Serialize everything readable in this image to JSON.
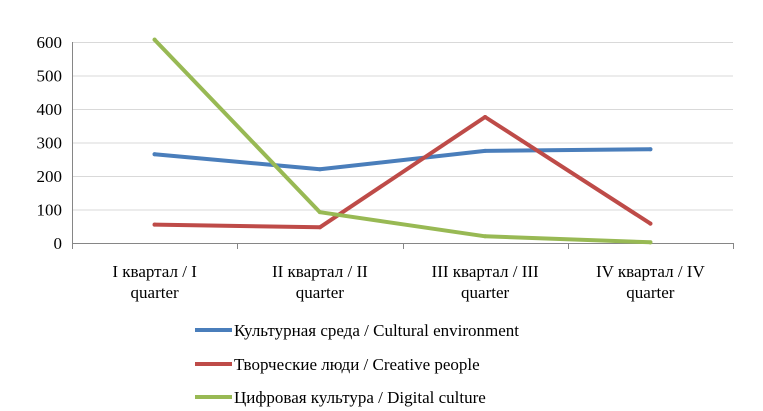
{
  "chart_data": {
    "type": "line",
    "categories": [
      [
        "I квартал / I",
        "quarter"
      ],
      [
        "II квартал / II",
        "quarter"
      ],
      [
        "III квартал / III",
        "quarter"
      ],
      [
        "IV квартал / IV",
        "quarter"
      ]
    ],
    "ylim": [
      0,
      600
    ],
    "yticks": [
      0,
      100,
      200,
      300,
      400,
      500,
      600
    ],
    "grid": true,
    "legend_position": "bottom",
    "series": [
      {
        "name": "Культурная среда / Cultural environment",
        "color": "#4a7ebb",
        "values": [
          265,
          220,
          275,
          280
        ]
      },
      {
        "name": "Творческие люди / Creative people",
        "color": "#be4b48",
        "values": [
          55,
          47,
          376,
          58
        ]
      },
      {
        "name": "Цифровая культура / Digital culture",
        "color": "#98b954",
        "values": [
          607,
          92,
          20,
          2
        ]
      }
    ]
  }
}
